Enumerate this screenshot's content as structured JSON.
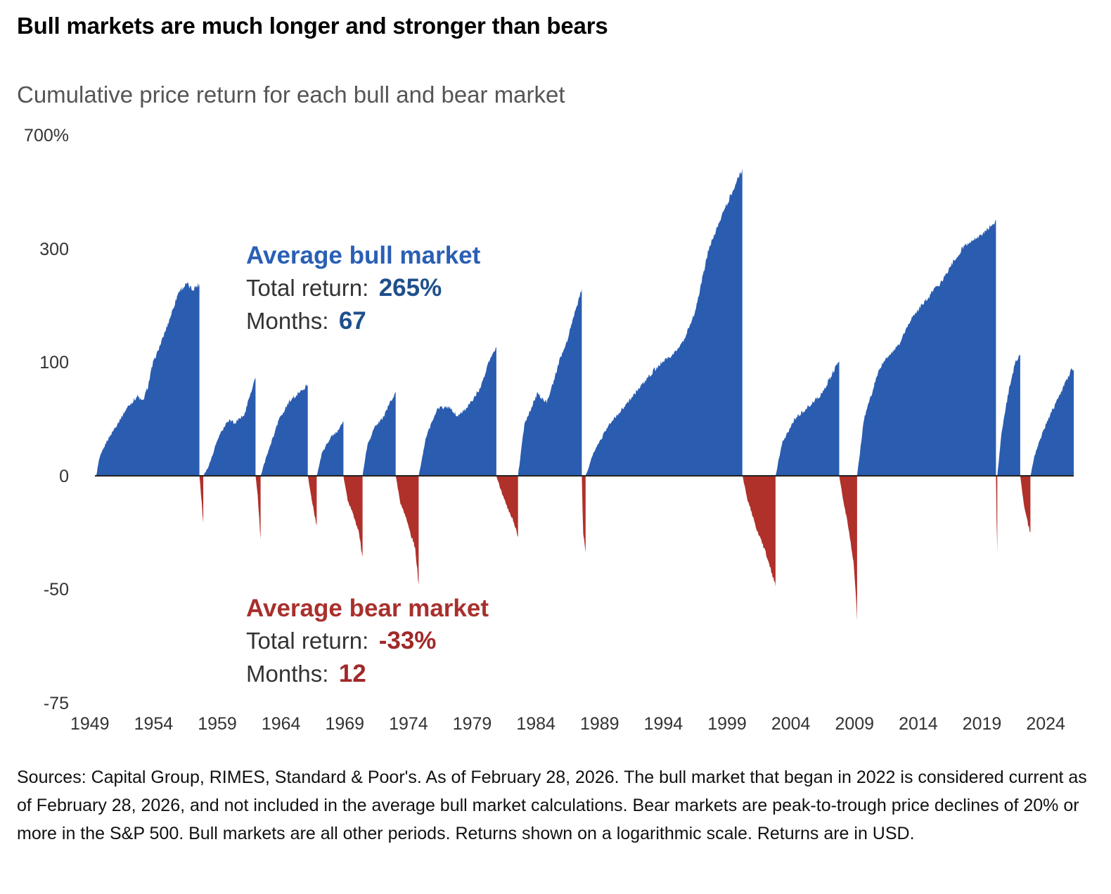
{
  "title": "Bull markets are much longer and stronger than bears",
  "footnote": "Sources: Capital Group, RIMES, Standard & Poor's. As of February 28, 2026. The bull market that began in 2022 is considered current as of February 28, 2026, and not included in the average bull market calculations. Bear markets are peak-to-trough price declines of 20% or more in the S&P 500. Bull markets are all other periods. Returns shown on a logarithmic scale. Returns are in USD.",
  "colors": {
    "bull": "#2a5cb0",
    "bear": "#b0302a",
    "bull_text": "#2a5fb4",
    "bear_text": "#a8302c",
    "value_bull": "#1f4f8c",
    "value_bear": "#a0282a"
  },
  "chart_data": {
    "type": "area",
    "title": "Cumulative price return for each bull and bear market",
    "scale": "logarithmic",
    "y_ticks": [
      {
        "label": "700%",
        "value": 700
      },
      {
        "label": "300",
        "value": 300
      },
      {
        "label": "100",
        "value": 100
      },
      {
        "label": "0",
        "value": 0
      },
      {
        "label": "-50",
        "value": -50
      },
      {
        "label": "-75",
        "value": -75
      }
    ],
    "x_ticks": [
      "1949",
      "1954",
      "1959",
      "1964",
      "1969",
      "1974",
      "1979",
      "1984",
      "1989",
      "1994",
      "1999",
      "2004",
      "2009",
      "2014",
      "2019",
      "2024"
    ],
    "x_range": [
      1949.4,
      2026.2
    ],
    "annotations": {
      "bull": {
        "title": "Average bull market",
        "return_label": "Total return:",
        "return_value": "265%",
        "months_label": "Months:",
        "months_value": "67"
      },
      "bear": {
        "title": "Average bear market",
        "return_label": "Total return:",
        "return_value": "-33%",
        "months_label": "Months:",
        "months_value": "12"
      }
    },
    "series": [
      {
        "name": "Bull market",
        "type": "bull",
        "start": 1949.5,
        "end": 1957.6,
        "shape": [
          [
            0,
            0
          ],
          [
            0.03,
            15
          ],
          [
            0.1,
            30
          ],
          [
            0.2,
            45
          ],
          [
            0.3,
            60
          ],
          [
            0.4,
            70
          ],
          [
            0.45,
            65
          ],
          [
            0.5,
            78
          ],
          [
            0.6,
            120
          ],
          [
            0.7,
            170
          ],
          [
            0.8,
            225
          ],
          [
            0.88,
            238
          ],
          [
            0.93,
            228
          ],
          [
            1,
            238
          ]
        ]
      },
      {
        "name": "Bear market",
        "type": "bear",
        "start": 1957.6,
        "end": 1957.9,
        "shape": [
          [
            0,
            0
          ],
          [
            0.5,
            -10
          ],
          [
            1,
            -21
          ]
        ]
      },
      {
        "name": "Bull market",
        "type": "bull",
        "start": 1957.9,
        "end": 1962.0,
        "shape": [
          [
            0,
            0
          ],
          [
            0.1,
            8
          ],
          [
            0.3,
            35
          ],
          [
            0.5,
            50
          ],
          [
            0.6,
            46
          ],
          [
            0.8,
            55
          ],
          [
            0.9,
            72
          ],
          [
            1,
            86
          ]
        ]
      },
      {
        "name": "Bear market",
        "type": "bear",
        "start": 1962.0,
        "end": 1962.4,
        "shape": [
          [
            0,
            0
          ],
          [
            0.4,
            -8
          ],
          [
            1,
            -28
          ]
        ]
      },
      {
        "name": "Bull market",
        "type": "bull",
        "start": 1962.4,
        "end": 1966.1,
        "shape": [
          [
            0,
            0
          ],
          [
            0.15,
            20
          ],
          [
            0.4,
            50
          ],
          [
            0.6,
            65
          ],
          [
            0.8,
            73
          ],
          [
            1,
            80
          ]
        ]
      },
      {
        "name": "Bear market",
        "type": "bear",
        "start": 1966.1,
        "end": 1966.8,
        "shape": [
          [
            0,
            0
          ],
          [
            0.5,
            -12
          ],
          [
            1,
            -22
          ]
        ]
      },
      {
        "name": "Bull market",
        "type": "bull",
        "start": 1966.8,
        "end": 1968.9,
        "shape": [
          [
            0,
            0
          ],
          [
            0.2,
            20
          ],
          [
            0.5,
            33
          ],
          [
            0.8,
            40
          ],
          [
            1,
            48
          ]
        ]
      },
      {
        "name": "Bear market",
        "type": "bear",
        "start": 1968.9,
        "end": 1970.4,
        "shape": [
          [
            0,
            0
          ],
          [
            0.2,
            -10
          ],
          [
            0.5,
            -17
          ],
          [
            0.8,
            -25
          ],
          [
            1,
            -36
          ]
        ]
      },
      {
        "name": "Bull market",
        "type": "bull",
        "start": 1970.4,
        "end": 1973.0,
        "shape": [
          [
            0,
            0
          ],
          [
            0.15,
            28
          ],
          [
            0.4,
            45
          ],
          [
            0.6,
            50
          ],
          [
            0.8,
            62
          ],
          [
            1,
            74
          ]
        ]
      },
      {
        "name": "Bear market",
        "type": "bear",
        "start": 1973.0,
        "end": 1974.8,
        "shape": [
          [
            0,
            0
          ],
          [
            0.2,
            -12
          ],
          [
            0.4,
            -17
          ],
          [
            0.6,
            -24
          ],
          [
            0.85,
            -32
          ],
          [
            1,
            -48
          ]
        ]
      },
      {
        "name": "Bull market",
        "type": "bull",
        "start": 1974.8,
        "end": 1980.9,
        "shape": [
          [
            0,
            0
          ],
          [
            0.1,
            35
          ],
          [
            0.25,
            60
          ],
          [
            0.4,
            60
          ],
          [
            0.5,
            52
          ],
          [
            0.65,
            62
          ],
          [
            0.8,
            78
          ],
          [
            0.9,
            100
          ],
          [
            1,
            126
          ]
        ]
      },
      {
        "name": "Bear market",
        "type": "bear",
        "start": 1980.9,
        "end": 1982.6,
        "shape": [
          [
            0,
            0
          ],
          [
            0.2,
            -6
          ],
          [
            0.5,
            -14
          ],
          [
            0.8,
            -20
          ],
          [
            1,
            -27
          ]
        ]
      },
      {
        "name": "Bull market",
        "type": "bull",
        "start": 1982.6,
        "end": 1987.6,
        "shape": [
          [
            0,
            0
          ],
          [
            0.1,
            45
          ],
          [
            0.3,
            72
          ],
          [
            0.45,
            65
          ],
          [
            0.6,
            90
          ],
          [
            0.75,
            130
          ],
          [
            0.9,
            190
          ],
          [
            1,
            229
          ]
        ]
      },
      {
        "name": "Bear market",
        "type": "bear",
        "start": 1987.6,
        "end": 1987.9,
        "shape": [
          [
            0,
            0
          ],
          [
            0.3,
            -24
          ],
          [
            1,
            -34
          ]
        ]
      },
      {
        "name": "Bull market",
        "type": "bull",
        "start": 1987.9,
        "end": 2000.2,
        "shape": [
          [
            0,
            0
          ],
          [
            0.05,
            20
          ],
          [
            0.15,
            45
          ],
          [
            0.3,
            70
          ],
          [
            0.45,
            95
          ],
          [
            0.55,
            110
          ],
          [
            0.62,
            135
          ],
          [
            0.7,
            190
          ],
          [
            0.8,
            320
          ],
          [
            0.88,
            430
          ],
          [
            0.95,
            520
          ],
          [
            1,
            582
          ]
        ]
      },
      {
        "name": "Bear market",
        "type": "bear",
        "start": 2000.2,
        "end": 2002.8,
        "shape": [
          [
            0,
            0
          ],
          [
            0.15,
            -10
          ],
          [
            0.4,
            -22
          ],
          [
            0.6,
            -30
          ],
          [
            0.8,
            -38
          ],
          [
            1,
            -49
          ]
        ]
      },
      {
        "name": "Bull market",
        "type": "bull",
        "start": 2002.8,
        "end": 2007.8,
        "shape": [
          [
            0,
            0
          ],
          [
            0.1,
            28
          ],
          [
            0.3,
            50
          ],
          [
            0.5,
            60
          ],
          [
            0.7,
            70
          ],
          [
            0.9,
            90
          ],
          [
            1,
            101
          ]
        ]
      },
      {
        "name": "Bear market",
        "type": "bear",
        "start": 2007.8,
        "end": 2009.2,
        "shape": [
          [
            0,
            0
          ],
          [
            0.2,
            -10
          ],
          [
            0.5,
            -22
          ],
          [
            0.8,
            -38
          ],
          [
            1,
            -57
          ]
        ]
      },
      {
        "name": "Bull market",
        "type": "bull",
        "start": 2009.2,
        "end": 2020.1,
        "shape": [
          [
            0,
            0
          ],
          [
            0.05,
            50
          ],
          [
            0.15,
            90
          ],
          [
            0.3,
            130
          ],
          [
            0.4,
            180
          ],
          [
            0.5,
            210
          ],
          [
            0.6,
            240
          ],
          [
            0.7,
            280
          ],
          [
            0.8,
            320
          ],
          [
            0.9,
            350
          ],
          [
            1,
            400
          ]
        ]
      },
      {
        "name": "Bear market",
        "type": "bear",
        "start": 2020.1,
        "end": 2020.2,
        "shape": [
          [
            0,
            0
          ],
          [
            0.5,
            -20
          ],
          [
            1,
            -34
          ]
        ]
      },
      {
        "name": "Bull market",
        "type": "bull",
        "start": 2020.2,
        "end": 2022.0,
        "shape": [
          [
            0,
            0
          ],
          [
            0.2,
            40
          ],
          [
            0.5,
            75
          ],
          [
            0.8,
            100
          ],
          [
            1,
            114
          ]
        ]
      },
      {
        "name": "Bear market",
        "type": "bear",
        "start": 2022.0,
        "end": 2022.8,
        "shape": [
          [
            0,
            0
          ],
          [
            0.4,
            -14
          ],
          [
            0.8,
            -22
          ],
          [
            1,
            -25
          ]
        ]
      },
      {
        "name": "Bull market",
        "type": "bull",
        "start": 2022.8,
        "end": 2026.2,
        "shape": [
          [
            0,
            0
          ],
          [
            0.1,
            18
          ],
          [
            0.3,
            40
          ],
          [
            0.6,
            65
          ],
          [
            0.85,
            85
          ],
          [
            0.95,
            95
          ],
          [
            1,
            93
          ]
        ]
      }
    ]
  }
}
